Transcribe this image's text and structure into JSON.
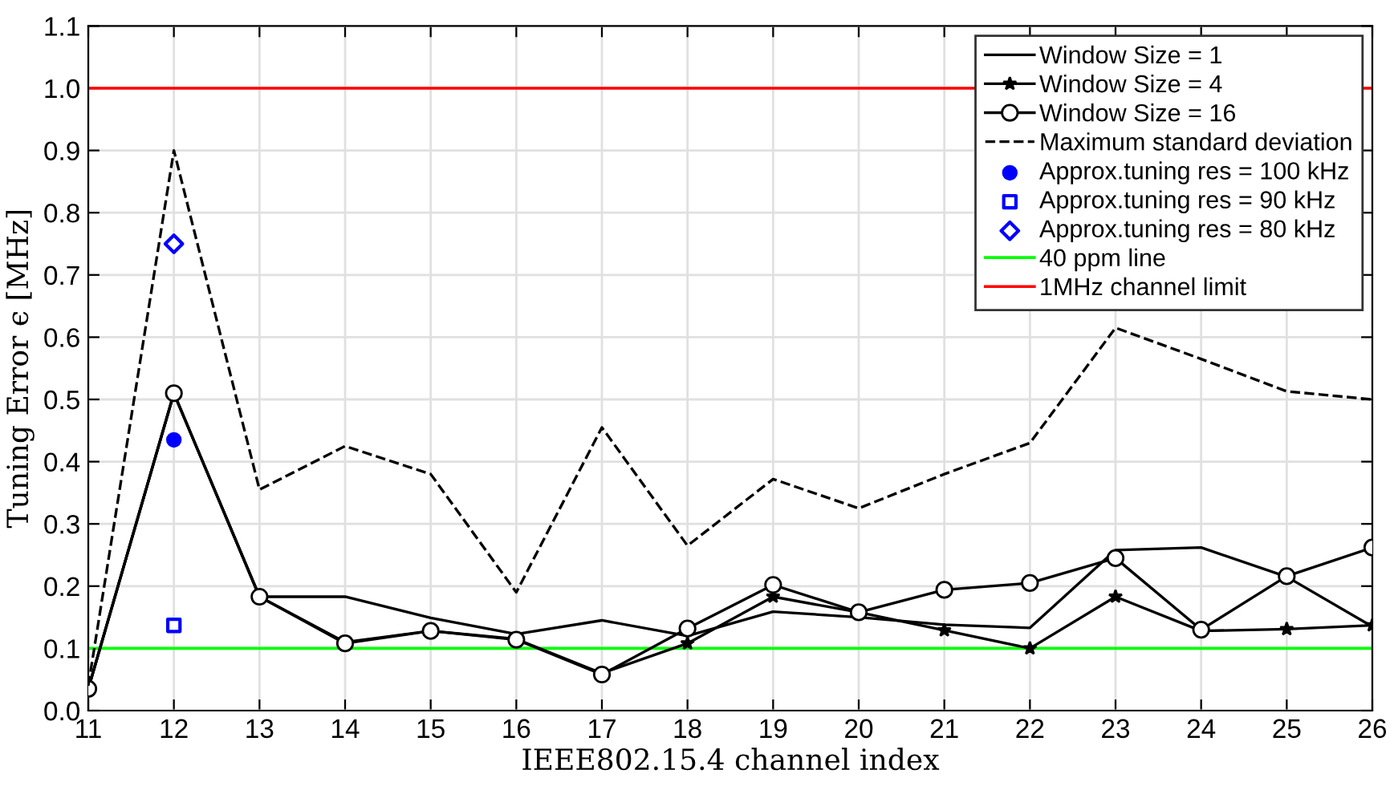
{
  "chart_data": {
    "type": "line",
    "xlabel": "IEEE802.15.4 channel index",
    "ylabel": "Tuning Error ϵ [MHz]",
    "x": [
      11,
      12,
      13,
      14,
      15,
      16,
      17,
      18,
      19,
      20,
      21,
      22,
      23,
      24,
      25,
      26
    ],
    "xlim": [
      11,
      26
    ],
    "xticks": [
      11,
      12,
      13,
      14,
      15,
      16,
      17,
      18,
      19,
      20,
      21,
      22,
      23,
      24,
      25,
      26
    ],
    "ylim": [
      0,
      1.1
    ],
    "yticks": [
      {
        "value": 0,
        "label": "0.0"
      },
      0.1,
      0.2,
      0.3,
      0.4,
      0.5,
      0.6,
      0.7,
      0.8,
      0.9,
      {
        "value": 1,
        "label": "1.0"
      },
      1.1
    ],
    "grid": true,
    "legend": "top right",
    "series": [
      {
        "name": "Window Size = 1",
        "color": "#000000",
        "marker": "none",
        "line_style": "solid",
        "values": [
          0.035,
          0.51,
          0.183,
          0.183,
          0.149,
          0.123,
          0.145,
          0.12,
          0.159,
          0.15,
          0.138,
          0.133,
          0.258,
          0.262,
          0.215,
          0.135
        ]
      },
      {
        "name": "Window Size = 4",
        "color": "#000000",
        "marker": "star",
        "line_style": "solid",
        "values": [
          0.035,
          0.51,
          0.183,
          0.11,
          0.128,
          0.115,
          0.06,
          0.108,
          0.183,
          0.158,
          0.129,
          0.1,
          0.183,
          0.128,
          0.131,
          0.137
        ]
      },
      {
        "name": "Window Size = 16",
        "color": "#000000",
        "marker": "circle",
        "line_style": "solid",
        "values": [
          0.035,
          0.51,
          0.183,
          0.108,
          0.128,
          0.114,
          0.058,
          0.132,
          0.202,
          0.158,
          0.194,
          0.205,
          0.245,
          0.13,
          0.216,
          0.262
        ]
      },
      {
        "name": "Maximum standard deviation",
        "color": "#000000",
        "marker": "none",
        "line_style": "dashed",
        "values": [
          0.04,
          0.9,
          0.355,
          0.425,
          0.38,
          0.19,
          0.455,
          0.265,
          0.372,
          0.325,
          0.38,
          0.43,
          0.615,
          0.565,
          0.513,
          0.5
        ]
      },
      {
        "name": "Approx.tuning res = 100 kHz",
        "type": "scatter",
        "color": "#0000ff",
        "marker": "circle",
        "values": [
          null,
          0.435,
          null,
          null,
          null,
          null,
          null,
          null,
          null,
          null,
          null,
          null,
          null,
          null,
          null,
          null
        ]
      },
      {
        "name": "Approx.tuning res = 90 kHz",
        "type": "scatter",
        "color": "#0000ff",
        "marker": "square",
        "values": [
          null,
          0.137,
          null,
          null,
          null,
          null,
          null,
          null,
          null,
          null,
          null,
          null,
          null,
          null,
          null,
          null
        ]
      },
      {
        "name": "Approx.tuning res = 80 kHz",
        "type": "scatter",
        "color": "#0000ff",
        "marker": "diamond",
        "values": [
          null,
          0.75,
          null,
          null,
          null,
          null,
          null,
          null,
          null,
          null,
          null,
          null,
          null,
          null,
          null,
          null
        ]
      }
    ],
    "ref_lines": [
      {
        "axis": "y",
        "value": 0.1,
        "label": "40 ppm line",
        "color": "#00ff00"
      },
      {
        "axis": "y",
        "value": 1.0,
        "label": "1MHz channel limit",
        "color": "#ff0000"
      }
    ]
  }
}
